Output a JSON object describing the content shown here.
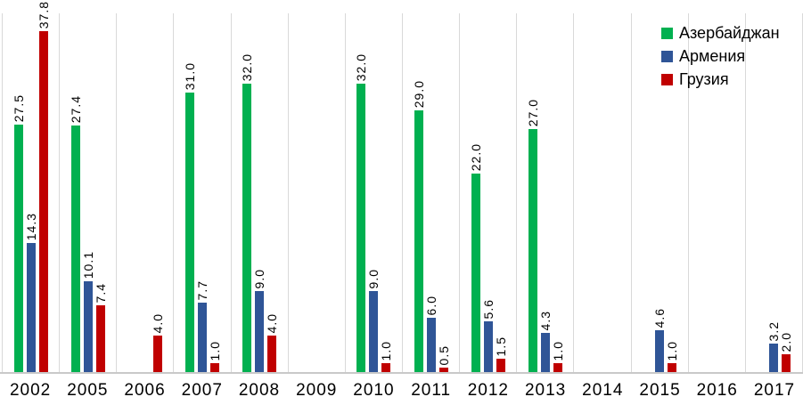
{
  "chart_data": {
    "type": "bar",
    "title": "",
    "xlabel": "",
    "ylabel": "",
    "ylim": [
      0,
      40
    ],
    "grid": "vertical-category-boundaries",
    "legend_position": "top-right",
    "value_label_format": "one-decimal-rotated-90",
    "categories": [
      "2002",
      "2005",
      "2006",
      "2007",
      "2008",
      "2009",
      "2010",
      "2011",
      "2012",
      "2013",
      "2014",
      "2015",
      "2016",
      "2017"
    ],
    "series": [
      {
        "name": "Азербайджан",
        "color": "#00B050",
        "values": [
          27.5,
          27.4,
          null,
          31.0,
          32.0,
          null,
          32.0,
          29.0,
          22.0,
          27.0,
          null,
          null,
          null,
          null
        ]
      },
      {
        "name": "Армения",
        "color": "#2F5597",
        "values": [
          14.3,
          10.1,
          null,
          7.7,
          9.0,
          null,
          9.0,
          6.0,
          5.6,
          4.3,
          null,
          4.6,
          null,
          3.2
        ]
      },
      {
        "name": "Грузия",
        "color": "#C00000",
        "values": [
          37.8,
          7.4,
          4.0,
          1.0,
          4.0,
          null,
          1.0,
          0.5,
          1.5,
          1.0,
          null,
          1.0,
          null,
          2.0
        ]
      }
    ]
  },
  "colors": {
    "gridline": "#D9D9D9",
    "axis_line": "#C9C9C9",
    "text": "#000000",
    "background": "#FFFFFF"
  }
}
